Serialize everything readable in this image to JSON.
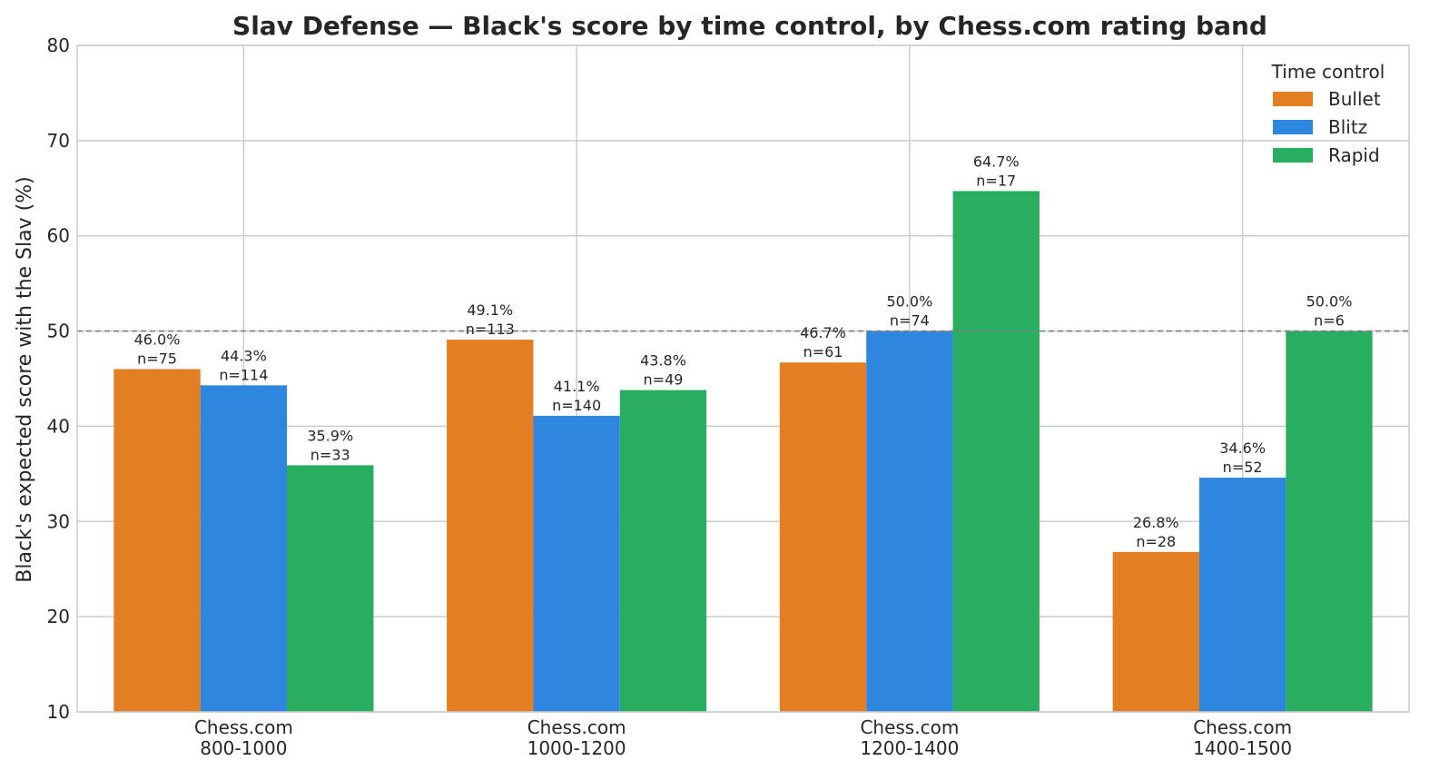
{
  "chart_data": {
    "type": "bar",
    "title": "Slav Defense — Black's score by time control, by Chess.com rating band",
    "xlabel": "",
    "ylabel": "Black's expected score with the Slav (%)",
    "ylim": [
      10,
      80
    ],
    "yticks": [
      10,
      20,
      30,
      40,
      50,
      60,
      70,
      80
    ],
    "grid": true,
    "reference_line": {
      "y": 50,
      "style": "dashed",
      "color": "#808080"
    },
    "categories": [
      [
        "Chess.com",
        "800-1000"
      ],
      [
        "Chess.com",
        "1000-1200"
      ],
      [
        "Chess.com",
        "1200-1400"
      ],
      [
        "Chess.com",
        "1400-1500"
      ]
    ],
    "legend": {
      "title": "Time control",
      "position": "top-right"
    },
    "series": [
      {
        "name": "Bullet",
        "color": "#e37e22",
        "values": [
          46.0,
          49.1,
          46.7,
          26.8
        ],
        "labels": [
          "46.0%",
          "49.1%",
          "46.7%",
          "26.8%"
        ],
        "n_labels": [
          "n=75",
          "n=113",
          "n=61",
          "n=28"
        ]
      },
      {
        "name": "Blitz",
        "color": "#2e86de",
        "values": [
          44.3,
          41.1,
          50.0,
          34.6
        ],
        "labels": [
          "44.3%",
          "41.1%",
          "50.0%",
          "34.6%"
        ],
        "n_labels": [
          "n=114",
          "n=140",
          "n=74",
          "n=52"
        ]
      },
      {
        "name": "Rapid",
        "color": "#27ae60",
        "values": [
          35.9,
          43.8,
          64.7,
          50.0
        ],
        "labels": [
          "35.9%",
          "43.8%",
          "64.7%",
          "50.0%"
        ],
        "n_labels": [
          "n=33",
          "n=49",
          "n=17",
          "n=6"
        ]
      }
    ]
  }
}
